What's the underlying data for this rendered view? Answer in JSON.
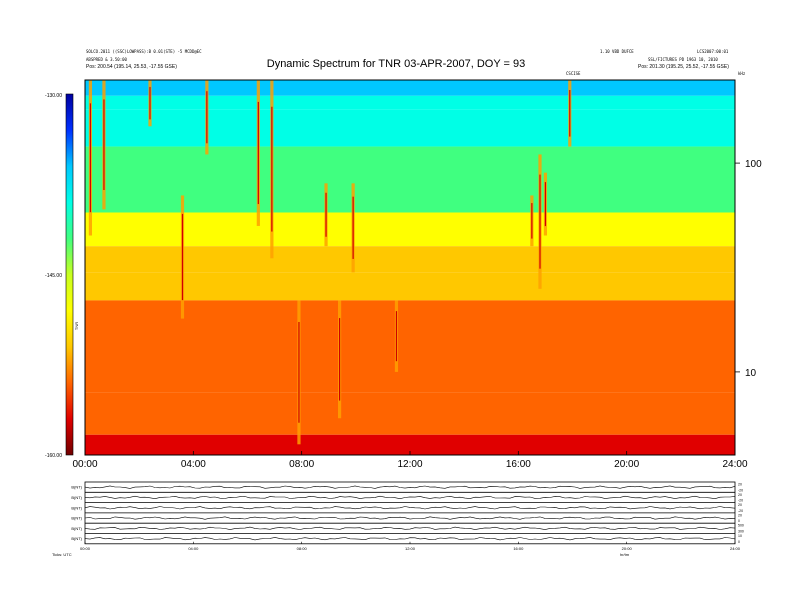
{
  "header": {
    "left_line1": "SOLCO.2011 ((SSC)LOWPASS):B 0.01(STE) -5 MCDD@EC",
    "left_line2": "ABSPRED & 3.50:00",
    "left_line3": "Pos: 200.54 (195.14, 25.53, -17.55 GSE)",
    "right_line1a": "1.10 VBD DUFCE",
    "right_line1b": "LCS2007:00:01",
    "right_line2": "SSL/FICTURES PD 1963 10, 2010",
    "right_line3": "Pos: 201.30 (195.25, 25.52, -17.55 GSE)",
    "marker": "CSCISE",
    "unit_right": "kHz"
  },
  "chart_data": {
    "type": "heatmap",
    "title": "Dynamic Spectrum for TNR 03-APR-2007, DOY = 93",
    "x": {
      "ticks": [
        "00:00",
        "04:00",
        "08:00",
        "12:00",
        "16:00",
        "20:00",
        "24:00"
      ],
      "range_hours": [
        0,
        24
      ]
    },
    "y": {
      "scale": "log",
      "ticks": [
        "100",
        "10"
      ],
      "range_khz": [
        4,
        250
      ]
    },
    "colorbar": {
      "ticks": [
        "-130.00",
        "-145.00",
        "-160.00"
      ],
      "range": [
        -160,
        -130
      ],
      "label": "TNR",
      "colors": [
        "#0000a0",
        "#0030ff",
        "#00c8ff",
        "#00ffe6",
        "#40ff80",
        "#c8ff20",
        "#ffff00",
        "#ffc800",
        "#ff6400",
        "#e00000",
        "#700000"
      ]
    },
    "bands": [
      {
        "from_khz": 250,
        "to_khz": 210,
        "value": -136
      },
      {
        "from_khz": 210,
        "to_khz": 180,
        "value": -139
      },
      {
        "from_khz": 180,
        "to_khz": 120,
        "value": -140
      },
      {
        "from_khz": 120,
        "to_khz": 58,
        "value": -143
      },
      {
        "from_khz": 58,
        "to_khz": 40,
        "value": -147
      },
      {
        "from_khz": 40,
        "to_khz": 30,
        "value": -150
      },
      {
        "from_khz": 30,
        "to_khz": 22,
        "value": -152
      },
      {
        "from_khz": 22,
        "to_khz": 8,
        "value": -153
      },
      {
        "from_khz": 8,
        "to_khz": 5,
        "value": -155
      },
      {
        "from_khz": 5,
        "to_khz": 4,
        "value": -158
      }
    ],
    "bursts": [
      {
        "hour": 0.2,
        "top_khz": 250,
        "bottom_khz": 45
      },
      {
        "hour": 0.7,
        "top_khz": 250,
        "bottom_khz": 60
      },
      {
        "hour": 2.4,
        "top_khz": 250,
        "bottom_khz": 150
      },
      {
        "hour": 3.6,
        "top_khz": 70,
        "bottom_khz": 18
      },
      {
        "hour": 4.5,
        "top_khz": 250,
        "bottom_khz": 110
      },
      {
        "hour": 6.4,
        "top_khz": 250,
        "bottom_khz": 50
      },
      {
        "hour": 6.9,
        "top_khz": 250,
        "bottom_khz": 35
      },
      {
        "hour": 7.9,
        "top_khz": 22,
        "bottom_khz": 4.5
      },
      {
        "hour": 8.9,
        "top_khz": 80,
        "bottom_khz": 40
      },
      {
        "hour": 9.4,
        "top_khz": 22,
        "bottom_khz": 6
      },
      {
        "hour": 9.9,
        "top_khz": 80,
        "bottom_khz": 30
      },
      {
        "hour": 11.5,
        "top_khz": 22,
        "bottom_khz": 10
      },
      {
        "hour": 16.5,
        "top_khz": 70,
        "bottom_khz": 40
      },
      {
        "hour": 16.8,
        "top_khz": 110,
        "bottom_khz": 25
      },
      {
        "hour": 17.0,
        "top_khz": 90,
        "bottom_khz": 45
      },
      {
        "hour": 17.9,
        "top_khz": 250,
        "bottom_khz": 120
      }
    ],
    "lower_panels": {
      "labels": [
        "B(NT)",
        "B(NT)",
        "B(NT)",
        "B(NT)",
        "B(NT)",
        "B(NT)"
      ],
      "right_ticks": [
        [
          "20",
          "-20"
        ],
        [
          "20",
          "-20"
        ],
        [
          "20",
          "-20"
        ],
        [
          "20",
          "0"
        ],
        [
          "500",
          "300"
        ],
        [
          "10",
          "0"
        ]
      ],
      "x_ticks": [
        "00:00",
        "04:00",
        "08:00",
        "12:00",
        "16:00",
        "20:00",
        "24:00"
      ],
      "footer_label": "Ticks: UTC",
      "footer_label2": "hr/tm"
    }
  }
}
